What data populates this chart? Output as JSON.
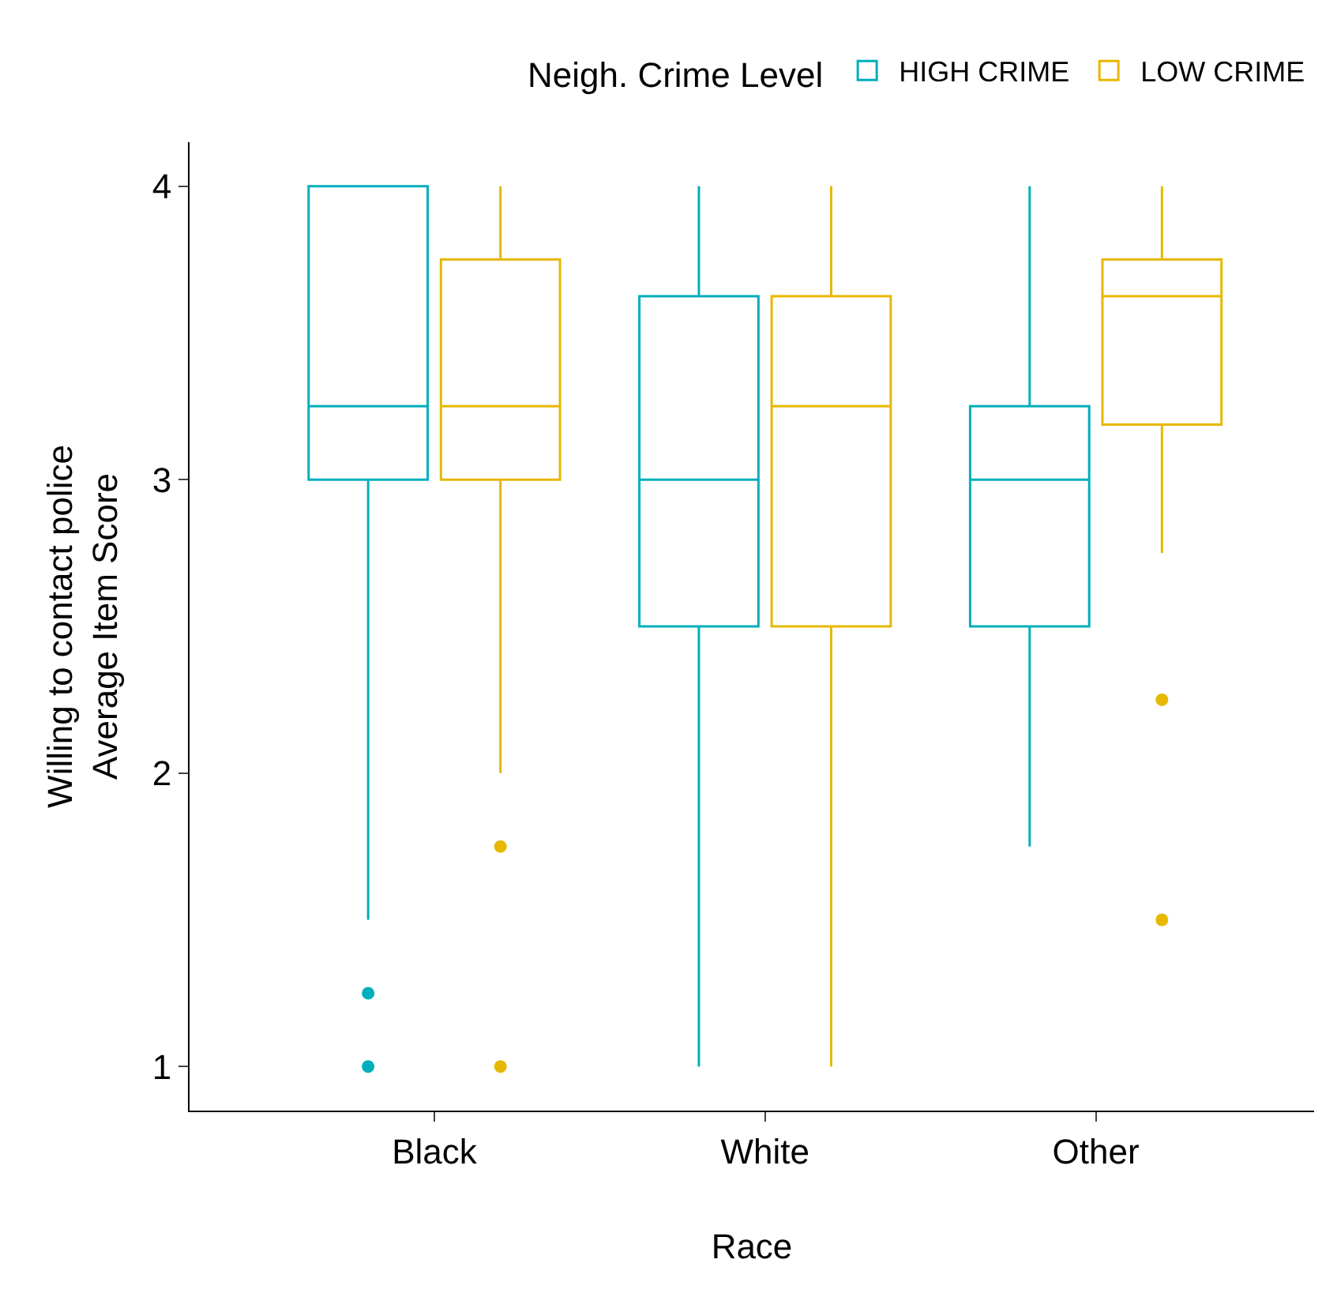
{
  "chart_data": {
    "type": "box",
    "xlabel": "Race",
    "ylabel": "Willing to contact police\nAverage Item Score",
    "legend_title": "Neigh. Crime Level",
    "categories": [
      "Black",
      "White",
      "Other"
    ],
    "ylim": [
      0.85,
      4.15
    ],
    "yticks": [
      1,
      2,
      3,
      4
    ],
    "legend": "top",
    "series": [
      {
        "name": "HIGH CRIME",
        "color": "#00afbb",
        "boxes": [
          {
            "low": 1.5,
            "q1": 3,
            "median": 3.25,
            "q3": 4,
            "high": 4,
            "outliers": [
              1.25,
              1
            ]
          },
          {
            "low": 1,
            "q1": 2.5,
            "median": 3,
            "q3": 3.625,
            "high": 4
          },
          {
            "low": 1.75,
            "q1": 2.5,
            "median": 3,
            "q3": 3.25,
            "high": 4
          }
        ]
      },
      {
        "name": "LOW CRIME",
        "color": "#e7b800",
        "boxes": [
          {
            "low": 2,
            "q1": 3,
            "median": 3.25,
            "q3": 3.75,
            "high": 4,
            "outliers": [
              1.75,
              1
            ]
          },
          {
            "low": 1,
            "q1": 2.5,
            "median": 3.25,
            "q3": 3.625,
            "high": 4
          },
          {
            "low": 2.75,
            "q1": 3.1875,
            "median": 3.625,
            "q3": 3.75,
            "high": 4,
            "outliers": [
              2.25,
              1.5
            ]
          }
        ]
      }
    ]
  }
}
